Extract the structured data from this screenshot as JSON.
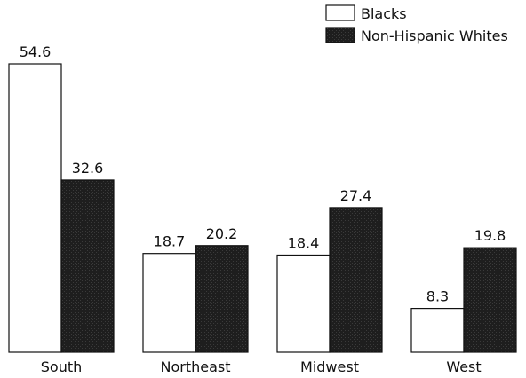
{
  "chart_data": {
    "type": "bar",
    "categories": [
      "South",
      "Northeast",
      "Midwest",
      "West"
    ],
    "series": [
      {
        "name": "Blacks",
        "values": [
          54.6,
          18.7,
          18.4,
          8.3
        ],
        "color": "#ffffff"
      },
      {
        "name": "Non-Hispanic Whites",
        "values": [
          32.6,
          20.2,
          27.4,
          19.8
        ],
        "color": "#1e1e1e"
      }
    ],
    "ylim": [
      0,
      54.6
    ],
    "legend": "top-right",
    "grid": false
  }
}
